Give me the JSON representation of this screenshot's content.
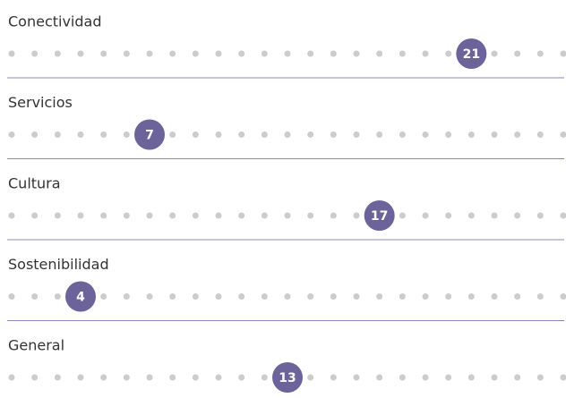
{
  "chart_data": {
    "type": "rank-dots",
    "categories": [
      "Conectividad",
      "Servicios",
      "Cultura",
      "Sostenibilidad",
      "General"
    ],
    "values": [
      21,
      7,
      17,
      4,
      13
    ],
    "xlim": [
      1,
      25
    ],
    "color": "#6b6399",
    "dot_color": "#cccccc",
    "separator_color": "#8d88b3"
  }
}
